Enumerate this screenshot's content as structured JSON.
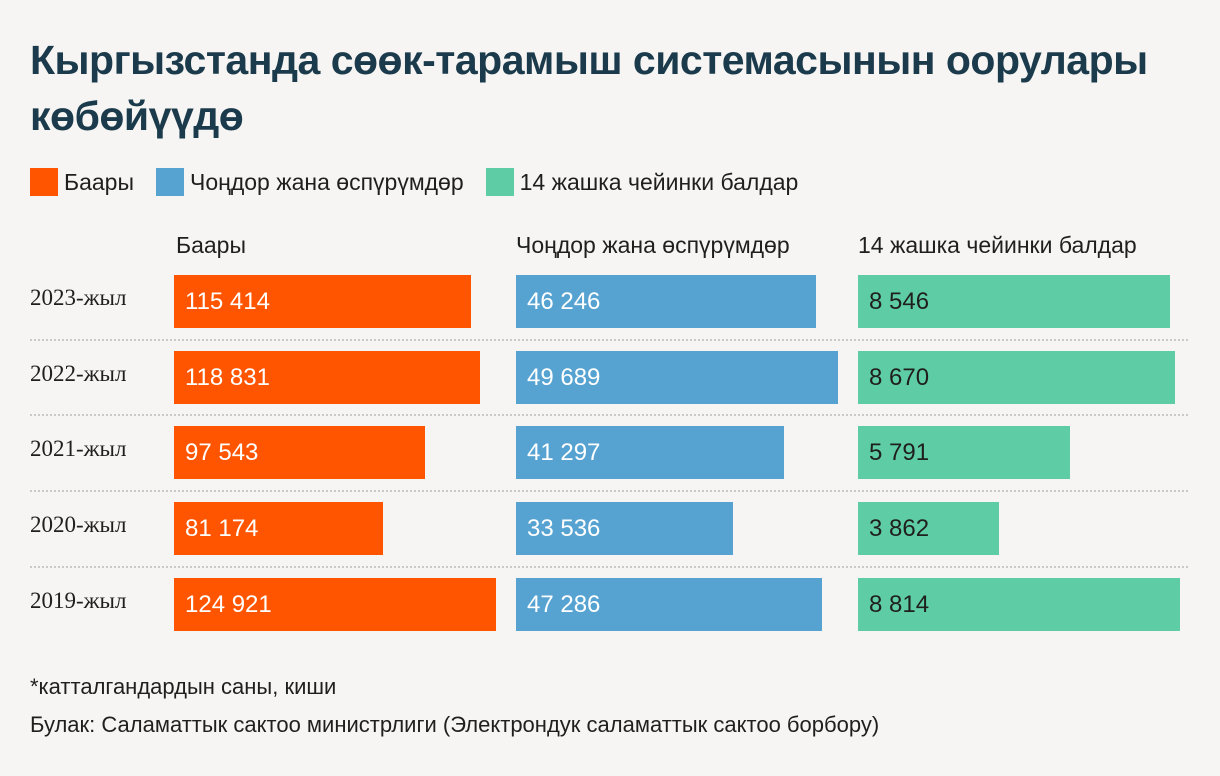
{
  "title": "Кыргызстанда сөөк-тарамыш системасынын оорулары көбөйүүдө",
  "legend": [
    {
      "label": "Баары",
      "color": "#ff5500"
    },
    {
      "label": "Чоңдор жана өспүрүмдөр",
      "color": "#56a3d2"
    },
    {
      "label": "14 жашка чейинки балдар",
      "color": "#5ecda5"
    }
  ],
  "chart_data": {
    "type": "bar",
    "title": "Кыргызстанда сөөк-тарамыш системасынын оорулары көбөйүүдө",
    "categories": [
      "2023-жыл",
      "2022-жыл",
      "2021-жыл",
      "2020-жыл",
      "2019-жыл"
    ],
    "series": [
      {
        "name": "Баары",
        "color": "#ff5500",
        "text_color": "#ffffff",
        "values": [
          115414,
          118831,
          97543,
          81174,
          124921
        ],
        "labels": [
          "115 414",
          "118 831",
          "97 543",
          "81 174",
          "124 921"
        ]
      },
      {
        "name": "Чоңдор жана өспүрүмдөр",
        "color": "#56a3d2",
        "text_color": "#ffffff",
        "values": [
          46246,
          49689,
          41297,
          33536,
          47286
        ],
        "labels": [
          "46 246",
          "49 689",
          "41 297",
          "33 536",
          "47 286"
        ]
      },
      {
        "name": "14 жашка чейинки балдар",
        "color": "#5ecda5",
        "text_color": "#1f1f1f",
        "values": [
          8546,
          8670,
          5791,
          3862,
          8814
        ],
        "labels": [
          "8 546",
          "8 670",
          "5 791",
          "3 862",
          "8 814"
        ]
      }
    ],
    "column_headers": [
      "Баары",
      "Чоңдор жана өспүрүмдөр",
      "14 жашка чейинки балдар"
    ],
    "orientation": "horizontal",
    "grid": false
  },
  "footnote": "*катталгандардын саны, киши",
  "source": "Булак: Саламаттык сактоо министрлиги (Электрондук саламаттык сактоо борбору)"
}
